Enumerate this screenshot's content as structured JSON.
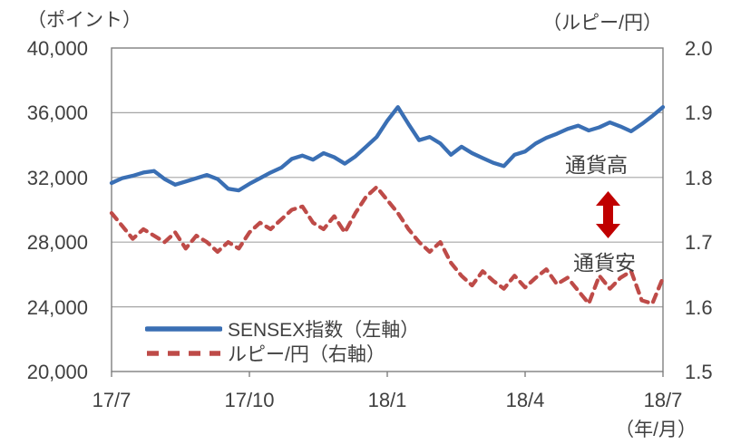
{
  "chart_data": {
    "type": "line",
    "title": "",
    "grid": true,
    "legend_position": "inside-bottom-left",
    "colors": {
      "sensex_blue": "#3A6FB4",
      "rupee_red": "#BE4B48",
      "arrow_red": "#C00000",
      "gridline": "#A6A6A6",
      "plot_border": "#7F7F7F",
      "text": "#404040"
    },
    "left_axis": {
      "title": "（ポイント）",
      "min": 20000,
      "max": 40000,
      "ticks": [
        "40,000",
        "36,000",
        "32,000",
        "28,000",
        "24,000",
        "20,000"
      ]
    },
    "right_axis": {
      "title": "（ルピー/円）",
      "min": 1.5,
      "max": 2.0,
      "ticks": [
        "2.0",
        "1.9",
        "1.8",
        "1.7",
        "1.6",
        "1.5"
      ]
    },
    "x_axis": {
      "title": "（年/月）",
      "ticks": [
        "17/7",
        "17/10",
        "18/1",
        "18/4",
        "18/7"
      ]
    },
    "series": [
      {
        "name": "SENSEX指数（左軸）",
        "axis": "left",
        "style": "solid",
        "color": "#3A6FB4",
        "values": [
          31650,
          31950,
          32100,
          32300,
          32400,
          31900,
          31550,
          31750,
          31950,
          32150,
          31900,
          31300,
          31200,
          31600,
          31950,
          32300,
          32600,
          33150,
          33350,
          33100,
          33500,
          33250,
          32850,
          33300,
          33900,
          34500,
          35500,
          36350,
          35300,
          34300,
          34500,
          34100,
          33400,
          33900,
          33500,
          33200,
          32900,
          32700,
          33400,
          33600,
          34100,
          34450,
          34700,
          35000,
          35200,
          34900,
          35100,
          35400,
          35150,
          34850,
          35300,
          35800,
          36350
        ]
      },
      {
        "name": "ルピー/円（右軸）",
        "axis": "right",
        "style": "dashed",
        "color": "#BE4B48",
        "values": [
          1.745,
          1.725,
          1.705,
          1.72,
          1.71,
          1.7,
          1.715,
          1.69,
          1.71,
          1.7,
          1.685,
          1.7,
          1.69,
          1.715,
          1.73,
          1.72,
          1.735,
          1.75,
          1.755,
          1.73,
          1.72,
          1.74,
          1.715,
          1.745,
          1.77,
          1.785,
          1.765,
          1.745,
          1.72,
          1.7,
          1.685,
          1.7,
          1.668,
          1.648,
          1.633,
          1.655,
          1.64,
          1.628,
          1.648,
          1.63,
          1.645,
          1.658,
          1.635,
          1.645,
          1.625,
          1.605,
          1.648,
          1.628,
          1.645,
          1.655,
          1.61,
          1.605,
          1.645
        ]
      }
    ],
    "annotations": {
      "currency_high": "通貨高",
      "currency_low": "通貨安",
      "arrow": "double-headed-vertical-arrow",
      "arrow_color": "#C00000"
    }
  }
}
